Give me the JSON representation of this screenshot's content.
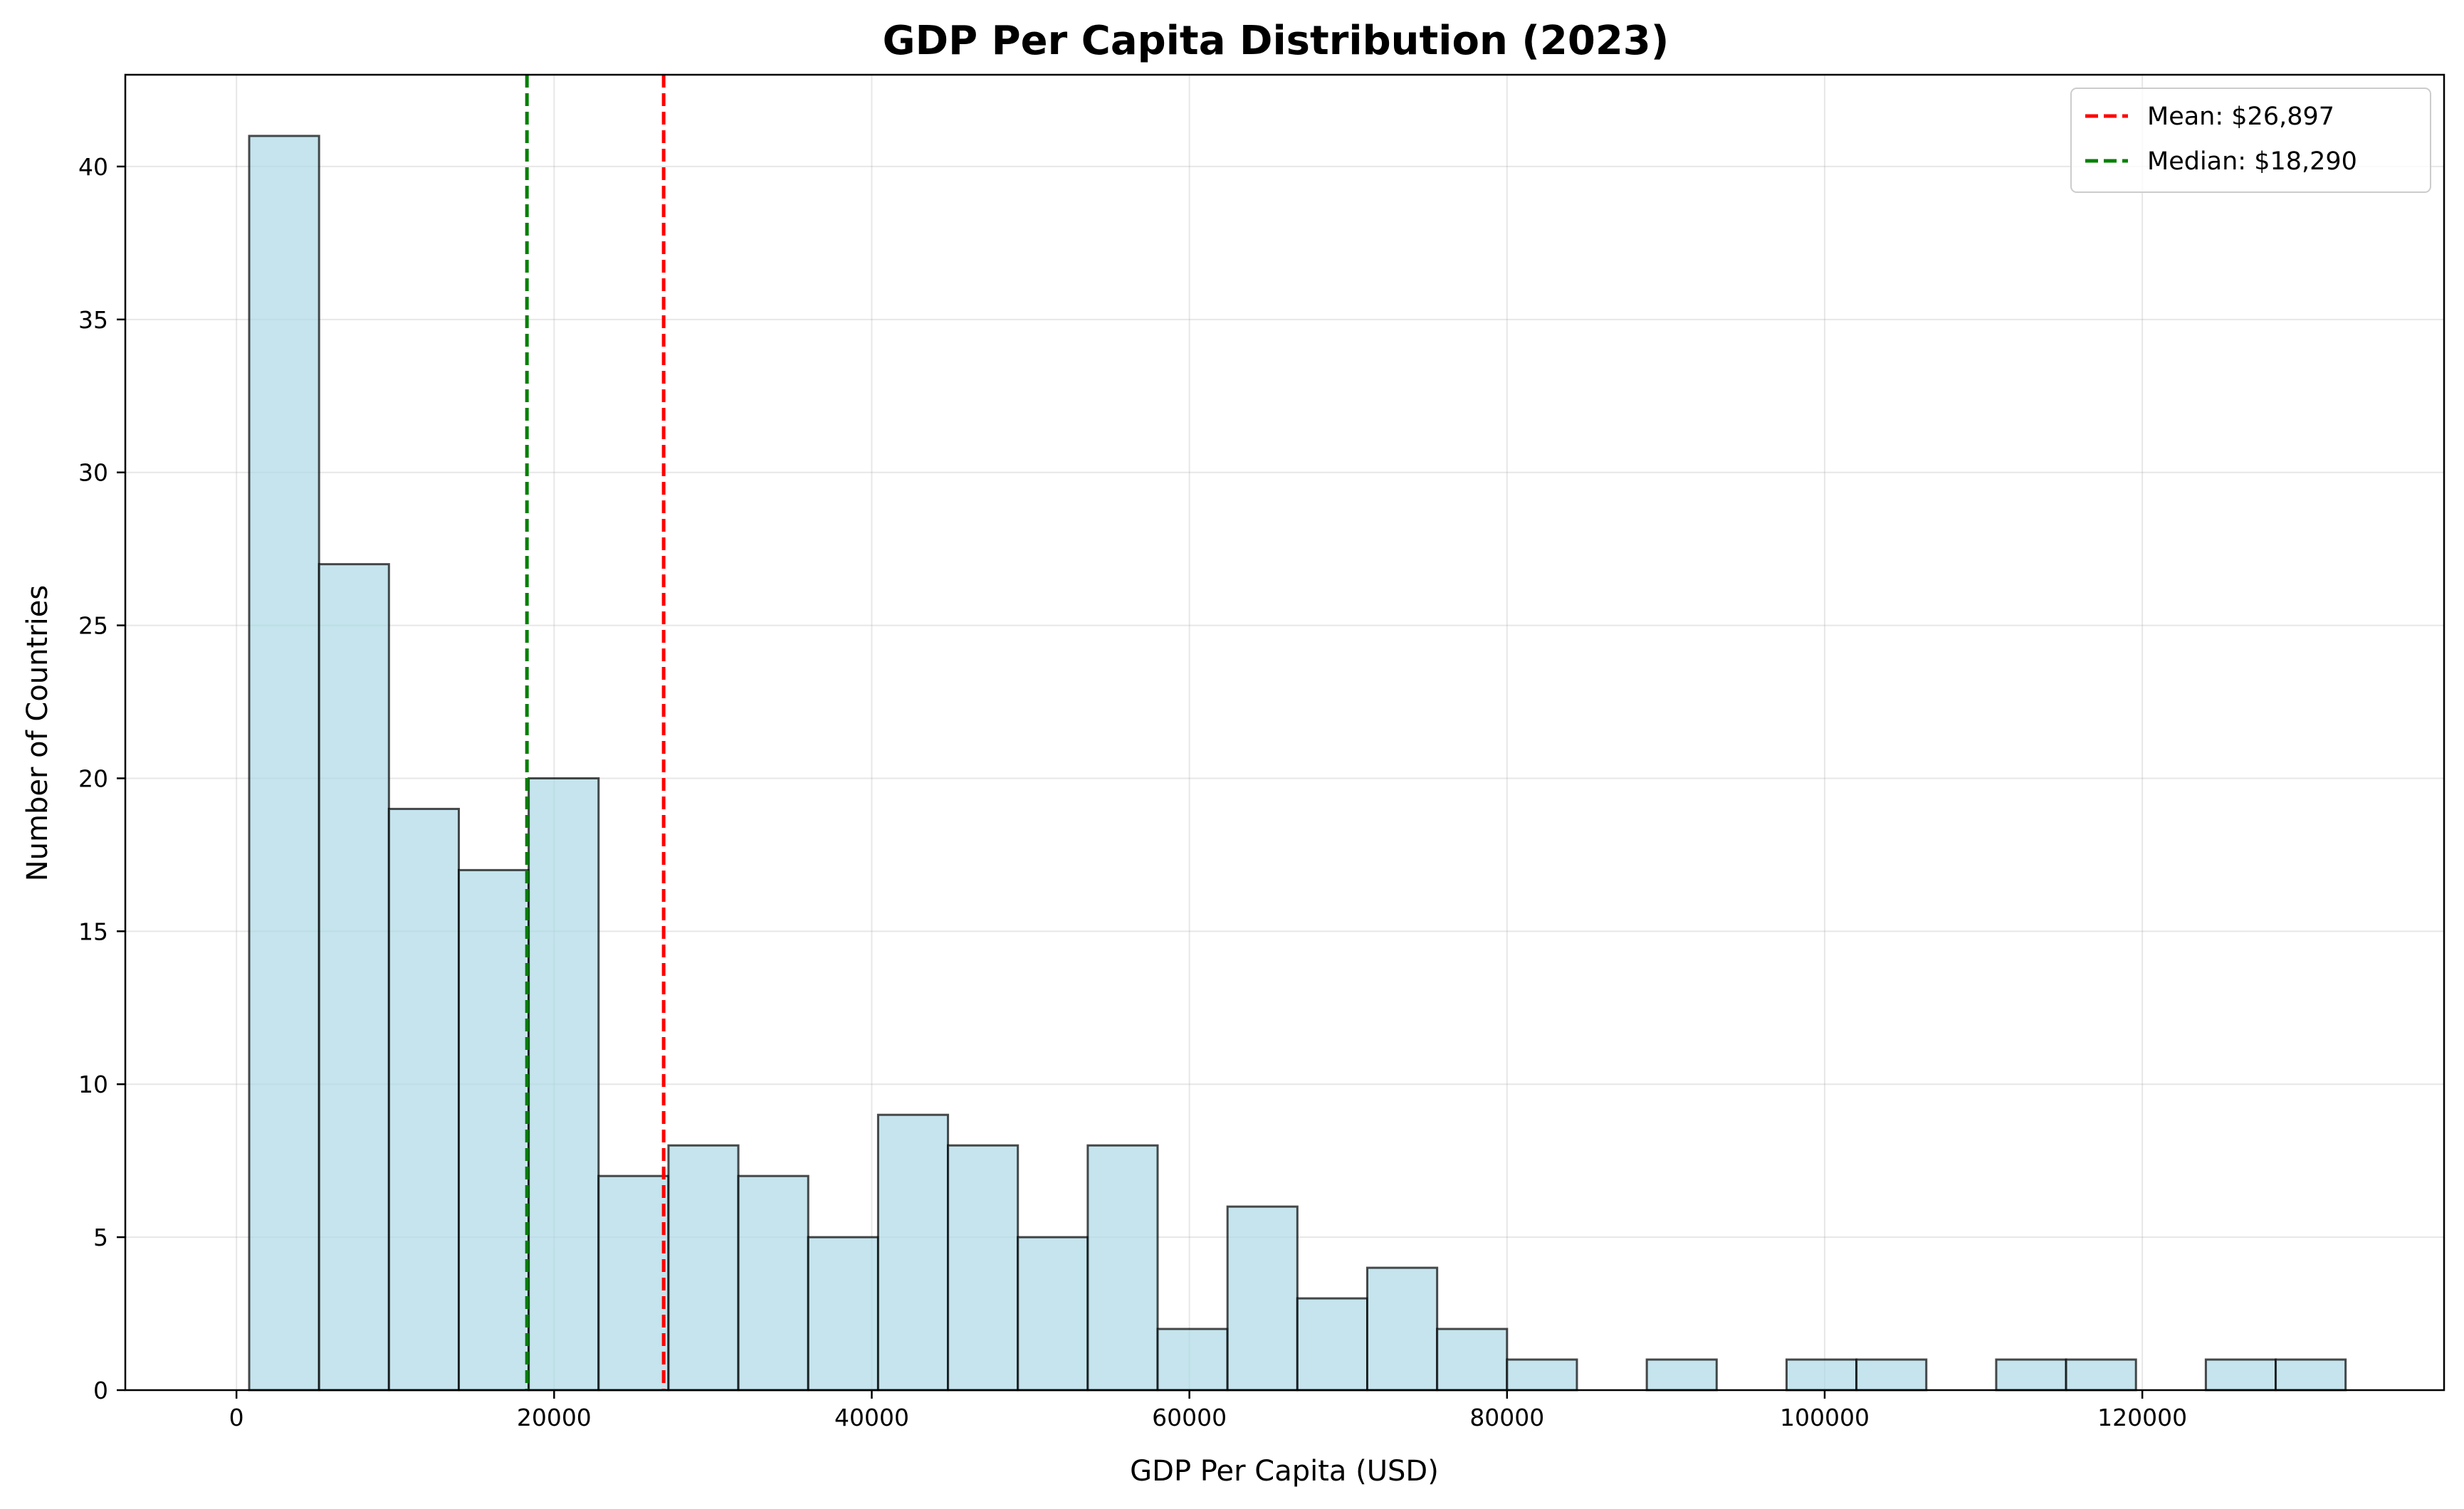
{
  "chart_data": {
    "type": "bar",
    "title": "GDP Per Capita Distribution (2023)",
    "xlabel": "GDP Per Capita (USD)",
    "ylabel": "Number of Countries",
    "xlim": [
      -7000,
      139000
    ],
    "ylim": [
      0,
      43
    ],
    "xticks": [
      0,
      20000,
      40000,
      60000,
      80000,
      100000,
      120000
    ],
    "yticks": [
      0,
      5,
      10,
      15,
      20,
      25,
      30,
      35,
      40
    ],
    "grid": true,
    "legend_position": "top-right",
    "bin_edges": [
      800,
      5200,
      9600,
      14000,
      18400,
      22800,
      27200,
      31600,
      36000,
      40400,
      44800,
      49200,
      53600,
      58000,
      62400,
      66800,
      71200,
      75600,
      80000,
      84400,
      88800,
      93200,
      97600,
      102000,
      106400,
      110800,
      115200,
      119600,
      124000,
      128400,
      132800
    ],
    "counts": [
      41,
      27,
      19,
      17,
      20,
      7,
      8,
      7,
      5,
      9,
      8,
      5,
      8,
      2,
      6,
      3,
      4,
      2,
      1,
      0,
      1,
      0,
      1,
      1,
      0,
      1,
      1,
      0,
      1,
      1
    ],
    "bar_color": "#add8e6",
    "bar_edge_color": "#000000",
    "reference_lines": [
      {
        "name": "Mean: $26,897",
        "value": 26897,
        "color": "#ff0000",
        "style": "dashed"
      },
      {
        "name": "Median: $18,290",
        "value": 18290,
        "color": "#008000",
        "style": "dashed"
      }
    ]
  }
}
